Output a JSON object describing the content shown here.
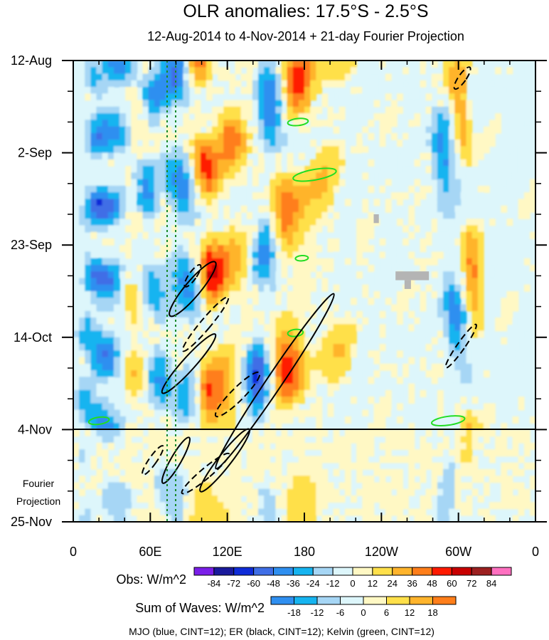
{
  "chart_data": {
    "type": "heatmap",
    "title": "OLR anomalies: 17.5°S - 2.5°S",
    "subtitle": "12-Aug-2014 to 4-Nov-2014 + 21-day Fourier Projection",
    "x_ticks": [
      "0",
      "60E",
      "120E",
      "180",
      "120W",
      "60W",
      "0"
    ],
    "y_ticks": [
      "12-Aug",
      "2-Sep",
      "23-Sep",
      "14-Oct",
      "4-Nov",
      "25-Nov"
    ],
    "projection_label_line1": "Fourier",
    "projection_label_line2": "Projection",
    "projection_start": "4-Nov",
    "obs_colorbar": {
      "label": "Obs: W/m^2",
      "levels": [
        -84,
        -72,
        -60,
        -48,
        -36,
        -24,
        -12,
        0,
        12,
        24,
        36,
        48,
        60,
        72,
        84
      ],
      "colors": [
        "#7a1ee8",
        "#1a1a9c",
        "#0f2cd8",
        "#3f6ee6",
        "#2f8ff0",
        "#16b4f0",
        "#a6d6f5",
        "#ddf6fb",
        "#fff8c4",
        "#ffe04a",
        "#ffb42c",
        "#ff7e1a",
        "#ff1a00",
        "#c80000",
        "#9c2020",
        "#ff70c0"
      ]
    },
    "waves_colorbar": {
      "label": "Sum of Waves: W/m^2",
      "levels": [
        -18,
        -12,
        -6,
        0,
        6,
        12,
        18
      ],
      "colors": [
        "#2f8ff0",
        "#16b4f0",
        "#a6d6f5",
        "#ddf6fb",
        "#fff8c4",
        "#ffe04a",
        "#ffb42c",
        "#ff7e1a"
      ]
    },
    "footnote": "MJO (blue, CINT=12); ER (black, CINT=12); Kelvin (green, CINT=12)",
    "bands": [
      {
        "lon": 12,
        "width": 8,
        "intensity": -0.9
      },
      {
        "lon": 28,
        "width": 14,
        "intensity": -1.4
      },
      {
        "lon": 48,
        "width": 10,
        "intensity": 0.8
      },
      {
        "lon": 62,
        "width": 10,
        "intensity": -1.2
      },
      {
        "lon": 85,
        "width": 12,
        "intensity": -1.5
      },
      {
        "lon": 100,
        "width": 10,
        "intensity": 1.6
      },
      {
        "lon": 118,
        "width": 14,
        "intensity": 1.0
      },
      {
        "lon": 148,
        "width": 10,
        "intensity": -1.6
      },
      {
        "lon": 168,
        "width": 14,
        "intensity": 1.4
      },
      {
        "lon": 198,
        "width": 18,
        "intensity": 0.5
      },
      {
        "lon": 292,
        "width": 9,
        "intensity": -1.3
      },
      {
        "lon": 305,
        "width": 8,
        "intensity": 1.2
      }
    ],
    "er_ellipses_solid": [
      {
        "lon": 93,
        "day": 52,
        "rlon": 6,
        "rday": 8,
        "tilt": 40
      },
      {
        "lon": 90,
        "day": 69,
        "rlon": 5,
        "rday": 9,
        "tilt": 42
      },
      {
        "lon": 157,
        "day": 73,
        "rlon": 6,
        "rday": 24,
        "tilt": 34
      },
      {
        "lon": 80,
        "day": 91,
        "rlon": 4,
        "rday": 6,
        "tilt": 30
      },
      {
        "lon": 118,
        "day": 91,
        "rlon": 5,
        "rday": 9,
        "tilt": 38
      }
    ],
    "er_ellipses_dashed": [
      {
        "lon": 303,
        "day": 4,
        "rlon": 3,
        "rday": 3,
        "tilt": 35
      },
      {
        "lon": 93,
        "day": 49,
        "rlon": 3,
        "rday": 3,
        "tilt": 35
      },
      {
        "lon": 103,
        "day": 60,
        "rlon": 4,
        "rday": 8,
        "tilt": 40
      },
      {
        "lon": 302,
        "day": 65,
        "rlon": 3,
        "rday": 6,
        "tilt": 35
      },
      {
        "lon": 128,
        "day": 76,
        "rlon": 5,
        "rday": 7,
        "tilt": 45
      },
      {
        "lon": 103,
        "day": 94,
        "rlon": 4,
        "rday": 7,
        "tilt": 50
      },
      {
        "lon": 62,
        "day": 91,
        "rlon": 3,
        "rday": 4,
        "tilt": 35
      }
    ],
    "kelvin_contours": [
      {
        "lon": 175,
        "day": 14,
        "rlon": 8,
        "rday": 0.8,
        "tilt": -6
      },
      {
        "lon": 188,
        "day": 26,
        "rlon": 17,
        "rday": 1.2,
        "tilt": -10
      },
      {
        "lon": 178,
        "day": 45,
        "rlon": 5,
        "rday": 0.6,
        "tilt": -4
      },
      {
        "lon": 173,
        "day": 62,
        "rlon": 6,
        "rday": 0.8,
        "tilt": -6
      },
      {
        "lon": 20,
        "day": 82,
        "rlon": 8,
        "rday": 0.8,
        "tilt": -8
      },
      {
        "lon": 292,
        "day": 82,
        "rlon": 13,
        "rday": 1,
        "tilt": -8
      }
    ],
    "mjo_contours": []
  }
}
